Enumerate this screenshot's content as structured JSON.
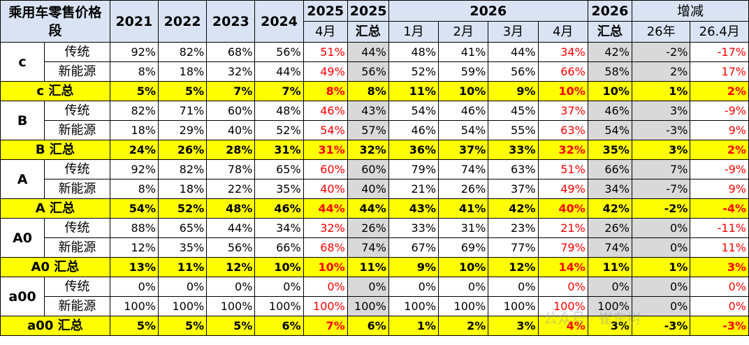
{
  "header": {
    "corner": "乘用车零售价格段",
    "years": [
      "2021",
      "2022",
      "2023",
      "2024"
    ],
    "y2025": "2025",
    "apr": "4月",
    "y2025b": "2025",
    "summary": "汇总",
    "y2026": "2026",
    "months": [
      "1月",
      "2月",
      "3月",
      "4月"
    ],
    "y2026b": "2026",
    "change": "增减",
    "change_cols": [
      "26年",
      "26.4月"
    ]
  },
  "groups": [
    {
      "name": "c",
      "rows": [
        {
          "label": "传统",
          "vals": [
            "92%",
            "82%",
            "68%",
            "56%",
            "51%",
            "44%",
            "48%",
            "41%",
            "44%",
            "34%",
            "42%",
            "-2%",
            "-17%"
          ]
        },
        {
          "label": "新能源",
          "vals": [
            "8%",
            "18%",
            "32%",
            "44%",
            "49%",
            "56%",
            "52%",
            "59%",
            "56%",
            "66%",
            "58%",
            "2%",
            "17%"
          ]
        }
      ],
      "summary": {
        "label": "c 汇总",
        "vals": [
          "5%",
          "5%",
          "7%",
          "7%",
          "8%",
          "8%",
          "11%",
          "10%",
          "9%",
          "10%",
          "10%",
          "1%",
          "2%"
        ]
      }
    },
    {
      "name": "B",
      "rows": [
        {
          "label": "传统",
          "vals": [
            "82%",
            "71%",
            "60%",
            "48%",
            "46%",
            "43%",
            "54%",
            "46%",
            "45%",
            "37%",
            "46%",
            "3%",
            "-9%"
          ]
        },
        {
          "label": "新能源",
          "vals": [
            "18%",
            "29%",
            "40%",
            "52%",
            "54%",
            "57%",
            "46%",
            "54%",
            "55%",
            "63%",
            "54%",
            "-3%",
            "9%"
          ]
        }
      ],
      "summary": {
        "label": "B 汇总",
        "vals": [
          "24%",
          "26%",
          "28%",
          "31%",
          "31%",
          "32%",
          "36%",
          "37%",
          "33%",
          "32%",
          "35%",
          "3%",
          "2%"
        ]
      }
    },
    {
      "name": "A",
      "rows": [
        {
          "label": "传统",
          "vals": [
            "92%",
            "82%",
            "78%",
            "65%",
            "60%",
            "60%",
            "79%",
            "74%",
            "63%",
            "51%",
            "66%",
            "7%",
            "-9%"
          ]
        },
        {
          "label": "新能源",
          "vals": [
            "8%",
            "18%",
            "22%",
            "35%",
            "40%",
            "40%",
            "21%",
            "26%",
            "37%",
            "49%",
            "34%",
            "-7%",
            "9%"
          ]
        }
      ],
      "summary": {
        "label": "A 汇总",
        "vals": [
          "54%",
          "52%",
          "48%",
          "46%",
          "44%",
          "44%",
          "43%",
          "41%",
          "42%",
          "40%",
          "42%",
          "-2%",
          "-4%"
        ]
      }
    },
    {
      "name": "A0",
      "rows": [
        {
          "label": "传统",
          "vals": [
            "88%",
            "65%",
            "44%",
            "34%",
            "32%",
            "26%",
            "33%",
            "31%",
            "23%",
            "21%",
            "26%",
            "0%",
            "-11%"
          ]
        },
        {
          "label": "新能源",
          "vals": [
            "12%",
            "35%",
            "56%",
            "66%",
            "68%",
            "74%",
            "67%",
            "69%",
            "77%",
            "79%",
            "74%",
            "0%",
            "11%"
          ]
        }
      ],
      "summary": {
        "label": "A0 汇总",
        "vals": [
          "13%",
          "11%",
          "12%",
          "10%",
          "10%",
          "11%",
          "9%",
          "10%",
          "12%",
          "14%",
          "11%",
          "1%",
          "3%"
        ]
      }
    },
    {
      "name": "a00",
      "rows": [
        {
          "label": "传统",
          "vals": [
            "0%",
            "0%",
            "0%",
            "0%",
            "0%",
            "0%",
            "0%",
            "0%",
            "0%",
            "0%",
            "0%",
            "0%",
            "0%"
          ]
        },
        {
          "label": "新能源",
          "vals": [
            "100%",
            "100%",
            "100%",
            "100%",
            "100%",
            "100%",
            "100%",
            "100%",
            "100%",
            "100%",
            "100%",
            "0%",
            "0%"
          ]
        }
      ],
      "summary": {
        "label": "a00 汇总",
        "vals": [
          "5%",
          "5%",
          "5%",
          "6%",
          "7%",
          "6%",
          "1%",
          "2%",
          "3%",
          "4%",
          "3%",
          "-3%",
          "-3%"
        ]
      }
    }
  ],
  "watermark": "公众号 · 崔东树",
  "colors": {
    "header_bg": "#dae3f3",
    "summary_bg": "#ffff00",
    "highlight_text": "#ff0000",
    "shade_bg": "#d9d9d9"
  }
}
